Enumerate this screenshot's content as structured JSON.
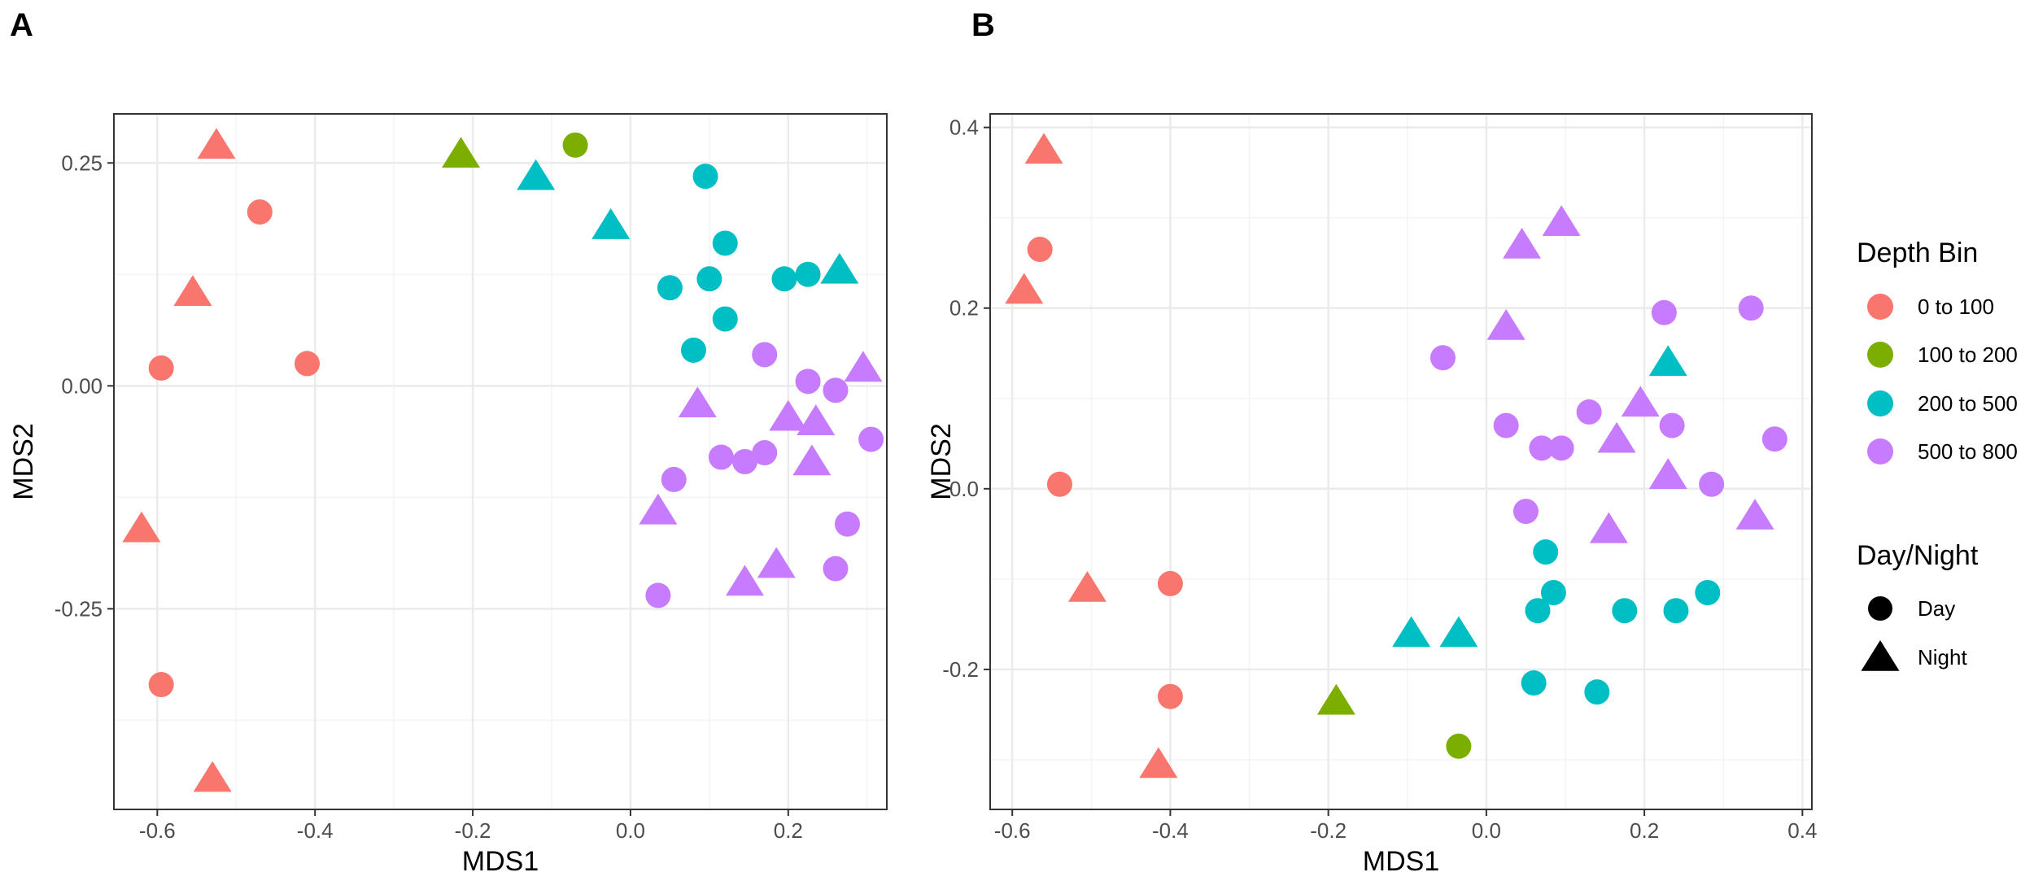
{
  "chart_data": [
    {
      "panel_label": "A",
      "type": "scatter",
      "xlabel": "MDS1",
      "ylabel": "MDS2",
      "xlim": [
        -0.655,
        0.325
      ],
      "ylim": [
        -0.475,
        0.305
      ],
      "xticks": [
        {
          "value": -0.6,
          "label": "-0.6"
        },
        {
          "value": -0.4,
          "label": "-0.4"
        },
        {
          "value": -0.2,
          "label": "-0.2"
        },
        {
          "value": 0.0,
          "label": "0.0"
        },
        {
          "value": 0.2,
          "label": "0.2"
        }
      ],
      "yticks": [
        {
          "value": 0.25,
          "label": "0.25"
        },
        {
          "value": 0.0,
          "label": "0.00"
        },
        {
          "value": -0.25,
          "label": "-0.25"
        }
      ],
      "minor_x": [
        -0.5,
        -0.3,
        -0.1,
        0.1,
        0.3
      ],
      "minor_y": [
        0.125,
        -0.125,
        -0.375
      ],
      "grid": true,
      "points": [
        {
          "x": -0.525,
          "y": 0.27,
          "depth": "0 to 100",
          "period": "Night"
        },
        {
          "x": -0.47,
          "y": 0.195,
          "depth": "0 to 100",
          "period": "Day"
        },
        {
          "x": -0.555,
          "y": 0.105,
          "depth": "0 to 100",
          "period": "Night"
        },
        {
          "x": -0.595,
          "y": 0.02,
          "depth": "0 to 100",
          "period": "Day"
        },
        {
          "x": -0.41,
          "y": 0.025,
          "depth": "0 to 100",
          "period": "Day"
        },
        {
          "x": -0.62,
          "y": -0.16,
          "depth": "0 to 100",
          "period": "Night"
        },
        {
          "x": -0.595,
          "y": -0.335,
          "depth": "0 to 100",
          "period": "Day"
        },
        {
          "x": -0.53,
          "y": -0.44,
          "depth": "0 to 100",
          "period": "Night"
        },
        {
          "x": -0.215,
          "y": 0.26,
          "depth": "100 to 200",
          "period": "Night"
        },
        {
          "x": -0.07,
          "y": 0.27,
          "depth": "100 to 200",
          "period": "Day"
        },
        {
          "x": -0.12,
          "y": 0.235,
          "depth": "200 to 500",
          "period": "Night"
        },
        {
          "x": -0.025,
          "y": 0.18,
          "depth": "200 to 500",
          "period": "Night"
        },
        {
          "x": 0.095,
          "y": 0.235,
          "depth": "200 to 500",
          "period": "Day"
        },
        {
          "x": 0.12,
          "y": 0.16,
          "depth": "200 to 500",
          "period": "Day"
        },
        {
          "x": 0.05,
          "y": 0.11,
          "depth": "200 to 500",
          "period": "Day"
        },
        {
          "x": 0.1,
          "y": 0.12,
          "depth": "200 to 500",
          "period": "Day"
        },
        {
          "x": 0.12,
          "y": 0.075,
          "depth": "200 to 500",
          "period": "Day"
        },
        {
          "x": 0.08,
          "y": 0.04,
          "depth": "200 to 500",
          "period": "Day"
        },
        {
          "x": 0.195,
          "y": 0.12,
          "depth": "200 to 500",
          "period": "Day"
        },
        {
          "x": 0.225,
          "y": 0.125,
          "depth": "200 to 500",
          "period": "Day"
        },
        {
          "x": 0.265,
          "y": 0.13,
          "depth": "200 to 500",
          "period": "Night"
        },
        {
          "x": 0.17,
          "y": 0.035,
          "depth": "500 to 800",
          "period": "Day"
        },
        {
          "x": 0.225,
          "y": 0.005,
          "depth": "500 to 800",
          "period": "Day"
        },
        {
          "x": 0.26,
          "y": -0.005,
          "depth": "500 to 800",
          "period": "Day"
        },
        {
          "x": 0.295,
          "y": 0.02,
          "depth": "500 to 800",
          "period": "Night"
        },
        {
          "x": 0.085,
          "y": -0.02,
          "depth": "500 to 800",
          "period": "Night"
        },
        {
          "x": 0.2,
          "y": -0.035,
          "depth": "500 to 800",
          "period": "Night"
        },
        {
          "x": 0.235,
          "y": -0.04,
          "depth": "500 to 800",
          "period": "Night"
        },
        {
          "x": 0.305,
          "y": -0.06,
          "depth": "500 to 800",
          "period": "Day"
        },
        {
          "x": 0.115,
          "y": -0.08,
          "depth": "500 to 800",
          "period": "Day"
        },
        {
          "x": 0.145,
          "y": -0.085,
          "depth": "500 to 800",
          "period": "Day"
        },
        {
          "x": 0.17,
          "y": -0.075,
          "depth": "500 to 800",
          "period": "Day"
        },
        {
          "x": 0.23,
          "y": -0.085,
          "depth": "500 to 800",
          "period": "Night"
        },
        {
          "x": 0.055,
          "y": -0.105,
          "depth": "500 to 800",
          "period": "Day"
        },
        {
          "x": 0.035,
          "y": -0.14,
          "depth": "500 to 800",
          "period": "Night"
        },
        {
          "x": 0.275,
          "y": -0.155,
          "depth": "500 to 800",
          "period": "Day"
        },
        {
          "x": 0.185,
          "y": -0.2,
          "depth": "500 to 800",
          "period": "Night"
        },
        {
          "x": 0.145,
          "y": -0.22,
          "depth": "500 to 800",
          "period": "Night"
        },
        {
          "x": 0.26,
          "y": -0.205,
          "depth": "500 to 800",
          "period": "Day"
        },
        {
          "x": 0.035,
          "y": -0.235,
          "depth": "500 to 800",
          "period": "Day"
        }
      ]
    },
    {
      "panel_label": "B",
      "type": "scatter",
      "xlabel": "MDS1",
      "ylabel": "MDS2",
      "xlim": [
        -0.628,
        0.412
      ],
      "ylim": [
        -0.355,
        0.415
      ],
      "xticks": [
        {
          "value": -0.6,
          "label": "-0.6"
        },
        {
          "value": -0.4,
          "label": "-0.4"
        },
        {
          "value": -0.2,
          "label": "-0.2"
        },
        {
          "value": 0.0,
          "label": "0.0"
        },
        {
          "value": 0.2,
          "label": "0.2"
        },
        {
          "value": 0.4,
          "label": "0.4"
        }
      ],
      "yticks": [
        {
          "value": 0.4,
          "label": "0.4"
        },
        {
          "value": 0.2,
          "label": "0.2"
        },
        {
          "value": 0.0,
          "label": "0.0"
        },
        {
          "value": -0.2,
          "label": "-0.2"
        }
      ],
      "minor_x": [
        -0.5,
        -0.3,
        -0.1,
        0.1,
        0.3
      ],
      "minor_y": [
        0.3,
        0.1,
        -0.1,
        -0.3
      ],
      "grid": true,
      "points": [
        {
          "x": -0.56,
          "y": 0.375,
          "depth": "0 to 100",
          "period": "Night"
        },
        {
          "x": -0.565,
          "y": 0.265,
          "depth": "0 to 100",
          "period": "Day"
        },
        {
          "x": -0.585,
          "y": 0.22,
          "depth": "0 to 100",
          "period": "Night"
        },
        {
          "x": -0.54,
          "y": 0.005,
          "depth": "0 to 100",
          "period": "Day"
        },
        {
          "x": -0.505,
          "y": -0.11,
          "depth": "0 to 100",
          "period": "Night"
        },
        {
          "x": -0.4,
          "y": -0.105,
          "depth": "0 to 100",
          "period": "Day"
        },
        {
          "x": -0.4,
          "y": -0.23,
          "depth": "0 to 100",
          "period": "Day"
        },
        {
          "x": -0.415,
          "y": -0.305,
          "depth": "0 to 100",
          "period": "Night"
        },
        {
          "x": -0.19,
          "y": -0.235,
          "depth": "100 to 200",
          "period": "Night"
        },
        {
          "x": -0.035,
          "y": -0.285,
          "depth": "100 to 200",
          "period": "Day"
        },
        {
          "x": 0.23,
          "y": 0.14,
          "depth": "200 to 500",
          "period": "Night"
        },
        {
          "x": 0.075,
          "y": -0.07,
          "depth": "200 to 500",
          "period": "Day"
        },
        {
          "x": 0.065,
          "y": -0.135,
          "depth": "200 to 500",
          "period": "Day"
        },
        {
          "x": 0.085,
          "y": -0.115,
          "depth": "200 to 500",
          "period": "Day"
        },
        {
          "x": 0.175,
          "y": -0.135,
          "depth": "200 to 500",
          "period": "Day"
        },
        {
          "x": 0.24,
          "y": -0.135,
          "depth": "200 to 500",
          "period": "Day"
        },
        {
          "x": 0.28,
          "y": -0.115,
          "depth": "200 to 500",
          "period": "Day"
        },
        {
          "x": -0.095,
          "y": -0.16,
          "depth": "200 to 500",
          "period": "Night"
        },
        {
          "x": -0.035,
          "y": -0.16,
          "depth": "200 to 500",
          "period": "Night"
        },
        {
          "x": 0.06,
          "y": -0.215,
          "depth": "200 to 500",
          "period": "Day"
        },
        {
          "x": 0.14,
          "y": -0.225,
          "depth": "200 to 500",
          "period": "Day"
        },
        {
          "x": 0.045,
          "y": 0.27,
          "depth": "500 to 800",
          "period": "Night"
        },
        {
          "x": 0.095,
          "y": 0.295,
          "depth": "500 to 800",
          "period": "Night"
        },
        {
          "x": 0.225,
          "y": 0.195,
          "depth": "500 to 800",
          "period": "Day"
        },
        {
          "x": 0.335,
          "y": 0.2,
          "depth": "500 to 800",
          "period": "Day"
        },
        {
          "x": 0.025,
          "y": 0.18,
          "depth": "500 to 800",
          "period": "Night"
        },
        {
          "x": -0.055,
          "y": 0.145,
          "depth": "500 to 800",
          "period": "Day"
        },
        {
          "x": 0.195,
          "y": 0.095,
          "depth": "500 to 800",
          "period": "Night"
        },
        {
          "x": 0.025,
          "y": 0.07,
          "depth": "500 to 800",
          "period": "Day"
        },
        {
          "x": 0.13,
          "y": 0.085,
          "depth": "500 to 800",
          "period": "Day"
        },
        {
          "x": 0.235,
          "y": 0.07,
          "depth": "500 to 800",
          "period": "Day"
        },
        {
          "x": 0.365,
          "y": 0.055,
          "depth": "500 to 800",
          "period": "Day"
        },
        {
          "x": 0.07,
          "y": 0.045,
          "depth": "500 to 800",
          "period": "Day"
        },
        {
          "x": 0.095,
          "y": 0.045,
          "depth": "500 to 800",
          "period": "Day"
        },
        {
          "x": 0.165,
          "y": 0.055,
          "depth": "500 to 800",
          "period": "Night"
        },
        {
          "x": 0.23,
          "y": 0.015,
          "depth": "500 to 800",
          "period": "Night"
        },
        {
          "x": 0.285,
          "y": 0.005,
          "depth": "500 to 800",
          "period": "Day"
        },
        {
          "x": 0.34,
          "y": -0.03,
          "depth": "500 to 800",
          "period": "Night"
        },
        {
          "x": 0.05,
          "y": -0.025,
          "depth": "500 to 800",
          "period": "Day"
        },
        {
          "x": 0.155,
          "y": -0.045,
          "depth": "500 to 800",
          "period": "Night"
        }
      ]
    }
  ],
  "legend": {
    "depth_title": "Depth Bin",
    "depth_items": [
      {
        "label": "0 to 100",
        "color": "#F8766D"
      },
      {
        "label": "100 to 200",
        "color": "#7CAE00"
      },
      {
        "label": "200 to 500",
        "color": "#00BFC4"
      },
      {
        "label": "500 to 800",
        "color": "#C77CFF"
      }
    ],
    "shape_title": "Day/Night",
    "shape_items": [
      {
        "label": "Day",
        "shape": "circle"
      },
      {
        "label": "Night",
        "shape": "triangle"
      }
    ]
  },
  "colors": {
    "panel_background": "#ffffff",
    "grid_major": "#ebebeb",
    "grid_minor": "#f4f4f4",
    "border": "#333333",
    "tick_text": "#4d4d4d"
  }
}
